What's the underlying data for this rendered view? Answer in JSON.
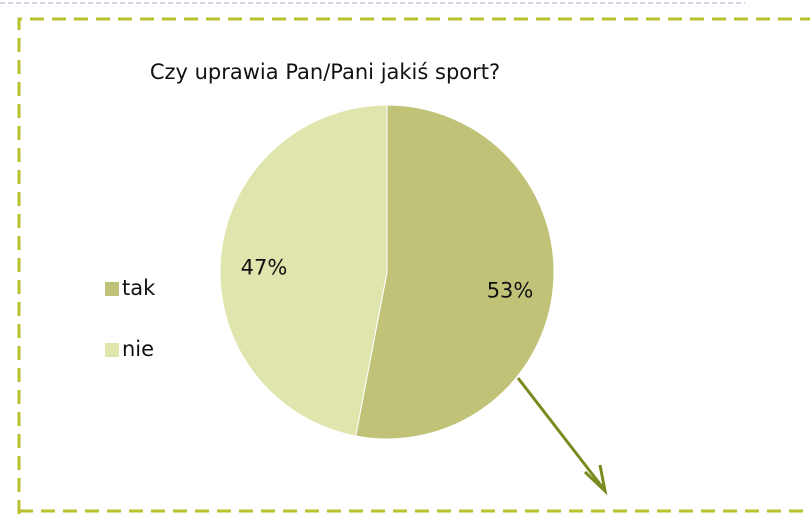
{
  "chart_data": {
    "type": "pie",
    "title": "Czy uprawia Pan/Pani jakiś sport?",
    "categories": [
      "tak",
      "nie"
    ],
    "values": [
      53,
      47
    ],
    "value_labels": [
      "53%",
      "47%"
    ],
    "colors": [
      "#c0c377",
      "#e0e5ae"
    ],
    "legend": "left"
  }
}
